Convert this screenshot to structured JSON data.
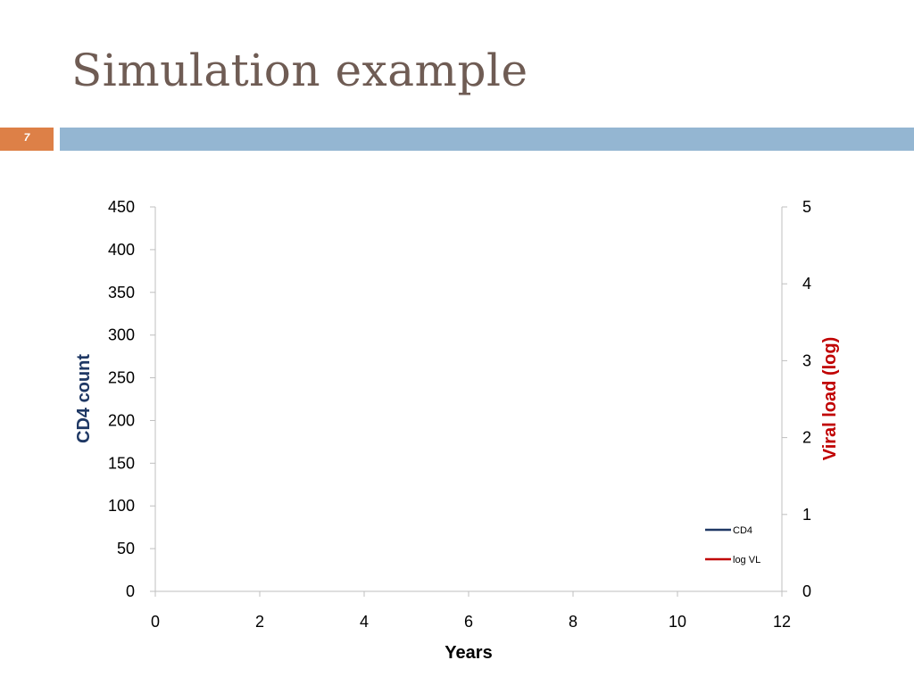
{
  "slide": {
    "title": "Simulation example",
    "number": "7"
  },
  "colors": {
    "title": "#6f5c54",
    "number_box": "#dd8047",
    "band": "#94b6d2",
    "cd4": "#1f3864",
    "log_vl": "#c00000",
    "axis": "#bfbfbf"
  },
  "chart_data": {
    "type": "line",
    "xlabel": "Years",
    "ylabel_left": "CD4 count",
    "ylabel_right": "Viral load (log)",
    "xlim": [
      0,
      12
    ],
    "x_ticks": [
      0,
      2,
      4,
      6,
      8,
      10,
      12
    ],
    "y_left_lim": [
      0,
      450
    ],
    "y_left_ticks": [
      0,
      50,
      100,
      150,
      200,
      250,
      300,
      350,
      400,
      450
    ],
    "y_right_lim": [
      0,
      5
    ],
    "y_right_ticks": [
      0,
      1,
      2,
      3,
      4,
      5
    ],
    "grid": false,
    "legend_position": "bottom-right",
    "series": [
      {
        "name": "CD4",
        "axis": "left",
        "color": "#1f3864",
        "x": [],
        "y": []
      },
      {
        "name": "log VL",
        "axis": "right",
        "color": "#c00000",
        "x": [],
        "y": []
      }
    ]
  }
}
